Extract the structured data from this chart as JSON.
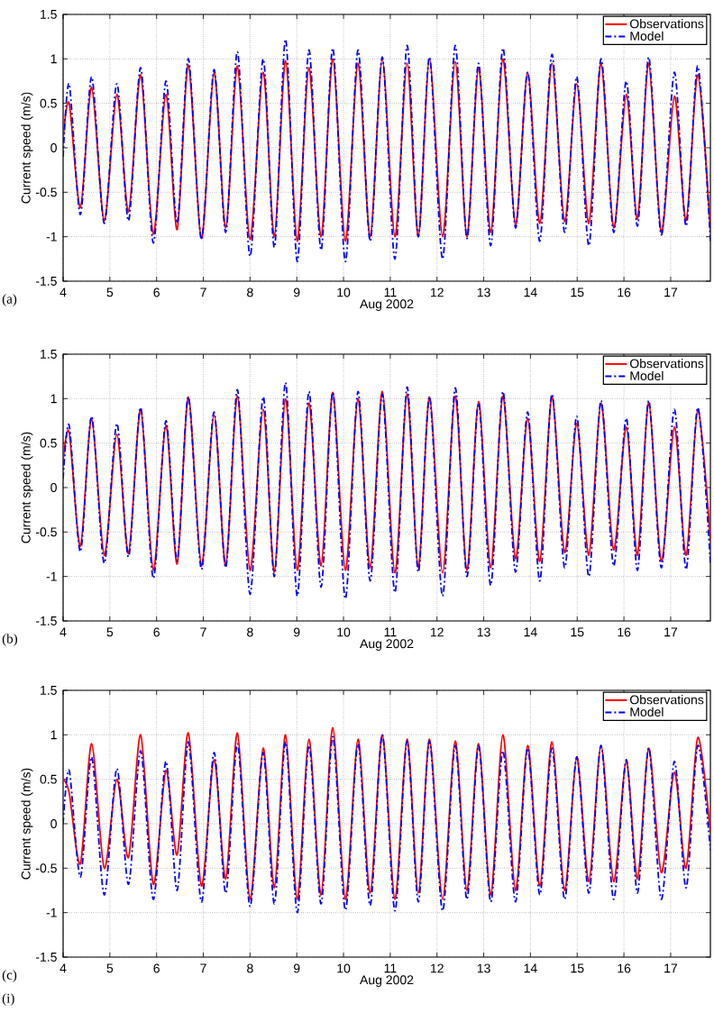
{
  "chart_data": [
    {
      "type": "line",
      "xlabel": "Aug 2002",
      "ylabel": "Current speed (m/s)",
      "annotations": [
        "(a)"
      ],
      "x": [
        4,
        4.13,
        4.37,
        4.61,
        4.88,
        5.15,
        5.4,
        5.66,
        5.93,
        6.2,
        6.44,
        6.68,
        6.96,
        7.23,
        7.48,
        7.73,
        8.0,
        8.28,
        8.52,
        8.76,
        9.01,
        9.26,
        9.52,
        9.77,
        10.04,
        10.31,
        10.57,
        10.83,
        11.1,
        11.36,
        11.6,
        11.84,
        12.12,
        12.39,
        12.64,
        12.89,
        13.15,
        13.41,
        13.68,
        13.94,
        14.2,
        14.46,
        14.73,
        14.99,
        15.25,
        15.51,
        15.78,
        16.05,
        16.29,
        16.53,
        16.8,
        17.08,
        17.33,
        17.58,
        17.85
      ],
      "series": [
        {
          "name": "Observations",
          "color": "#ff0000",
          "line_style": "solid",
          "values": [
            0.1,
            0.5,
            -0.67,
            0.68,
            -0.82,
            0.6,
            -0.72,
            0.82,
            -0.97,
            0.6,
            -0.92,
            0.93,
            -1.02,
            0.85,
            -0.9,
            0.92,
            -1.03,
            0.85,
            -1.0,
            0.98,
            -1.05,
            0.9,
            -1.0,
            1.0,
            -1.05,
            0.95,
            -1.0,
            1.0,
            -1.0,
            0.95,
            -1.0,
            1.0,
            -1.0,
            0.97,
            -1.0,
            0.9,
            -0.95,
            1.0,
            -0.87,
            0.85,
            -0.85,
            0.95,
            -0.83,
            0.72,
            -0.85,
            0.95,
            -0.9,
            0.6,
            -0.8,
            0.95,
            -0.95,
            0.58,
            -0.82,
            0.82,
            -0.95
          ]
        },
        {
          "name": "Model",
          "color": "#0000ff",
          "line_style": "dashdot",
          "values": [
            -0.1,
            0.72,
            -0.75,
            0.8,
            -0.85,
            0.72,
            -0.82,
            0.9,
            -1.07,
            0.75,
            -0.85,
            1.0,
            -1.03,
            0.88,
            -0.95,
            1.08,
            -1.22,
            1.0,
            -1.12,
            1.22,
            -1.28,
            1.1,
            -1.15,
            1.12,
            -1.28,
            1.1,
            -1.05,
            1.02,
            -1.25,
            1.15,
            -1.0,
            1.02,
            -1.25,
            1.15,
            -1.02,
            0.95,
            -1.1,
            1.12,
            -0.9,
            0.85,
            -1.05,
            1.05,
            -0.95,
            0.8,
            -1.1,
            1.0,
            -0.95,
            0.75,
            -0.88,
            1.02,
            -0.98,
            0.85,
            -0.88,
            0.92,
            -1.05
          ]
        }
      ],
      "xlim": [
        4,
        17.85
      ],
      "ylim": [
        -1.5,
        1.5
      ],
      "xticks": [
        4,
        5,
        6,
        7,
        8,
        9,
        10,
        11,
        12,
        13,
        14,
        15,
        16,
        17
      ],
      "yticks": [
        -1.5,
        -1,
        -0.5,
        0,
        0.5,
        1,
        1.5
      ],
      "grid": true,
      "legend": "top right"
    },
    {
      "type": "line",
      "xlabel": "Aug 2002",
      "ylabel": "Current speed (m/s)",
      "annotations": [
        "(b)"
      ],
      "x": [
        4,
        4.13,
        4.37,
        4.61,
        4.88,
        5.15,
        5.4,
        5.66,
        5.93,
        6.2,
        6.44,
        6.68,
        6.96,
        7.23,
        7.48,
        7.73,
        8.0,
        8.28,
        8.52,
        8.76,
        9.01,
        9.26,
        9.52,
        9.77,
        10.04,
        10.31,
        10.57,
        10.83,
        11.1,
        11.36,
        11.6,
        11.84,
        12.12,
        12.39,
        12.64,
        12.89,
        13.15,
        13.41,
        13.68,
        13.94,
        14.2,
        14.46,
        14.73,
        14.99,
        15.25,
        15.51,
        15.78,
        16.05,
        16.29,
        16.53,
        16.8,
        17.08,
        17.33,
        17.58,
        17.85
      ],
      "series": [
        {
          "name": "Observations",
          "color": "#ff0000",
          "line_style": "solid",
          "values": [
            0.3,
            0.62,
            -0.66,
            0.78,
            -0.76,
            0.6,
            -0.74,
            0.88,
            -0.93,
            0.7,
            -0.86,
            1.02,
            -0.88,
            0.82,
            -0.88,
            1.03,
            -0.93,
            0.88,
            -0.95,
            1.0,
            -0.93,
            0.95,
            -0.88,
            1.07,
            -0.93,
            1.0,
            -0.9,
            1.08,
            -0.96,
            1.05,
            -0.9,
            1.02,
            -0.96,
            1.03,
            -0.93,
            0.97,
            -0.9,
            1.03,
            -0.8,
            0.78,
            -0.83,
            1.02,
            -0.73,
            0.72,
            -0.76,
            0.95,
            -0.7,
            0.68,
            -0.76,
            0.95,
            -0.83,
            0.68,
            -0.76,
            0.88,
            -0.6
          ]
        },
        {
          "name": "Model",
          "color": "#0000ff",
          "line_style": "dashdot",
          "values": [
            0.1,
            0.7,
            -0.72,
            0.8,
            -0.85,
            0.72,
            -0.78,
            0.9,
            -1.02,
            0.75,
            -0.82,
            1.02,
            -0.92,
            0.85,
            -0.9,
            1.1,
            -1.2,
            1.02,
            -1.0,
            1.18,
            -1.22,
            1.08,
            -1.12,
            1.07,
            -1.25,
            1.08,
            -1.05,
            1.05,
            -1.18,
            1.13,
            -0.95,
            1.02,
            -1.22,
            1.12,
            -1.0,
            0.95,
            -1.1,
            1.08,
            -0.95,
            0.85,
            -1.05,
            1.05,
            -0.9,
            0.8,
            -1.0,
            0.98,
            -0.88,
            0.78,
            -0.93,
            0.98,
            -0.9,
            0.88,
            -0.92,
            0.9,
            -0.85
          ]
        }
      ],
      "xlim": [
        4,
        17.85
      ],
      "ylim": [
        -1.5,
        1.5
      ],
      "xticks": [
        4,
        5,
        6,
        7,
        8,
        9,
        10,
        11,
        12,
        13,
        14,
        15,
        16,
        17
      ],
      "yticks": [
        -1.5,
        -1,
        -0.5,
        0,
        0.5,
        1,
        1.5
      ],
      "grid": true,
      "legend": "top right"
    },
    {
      "type": "line",
      "xlabel": "Aug 2002",
      "ylabel": "Current speed (m/s)",
      "annotations": [
        "(c)",
        "(i)"
      ],
      "x": [
        4,
        4.13,
        4.37,
        4.61,
        4.88,
        5.15,
        5.4,
        5.66,
        5.93,
        6.2,
        6.44,
        6.68,
        6.96,
        7.23,
        7.48,
        7.73,
        8.0,
        8.28,
        8.52,
        8.76,
        9.01,
        9.26,
        9.52,
        9.77,
        10.04,
        10.31,
        10.57,
        10.83,
        11.1,
        11.36,
        11.6,
        11.84,
        12.12,
        12.39,
        12.64,
        12.89,
        13.15,
        13.41,
        13.68,
        13.94,
        14.2,
        14.46,
        14.73,
        14.99,
        15.25,
        15.51,
        15.78,
        16.05,
        16.29,
        16.53,
        16.8,
        17.08,
        17.33,
        17.58,
        17.85
      ],
      "series": [
        {
          "name": "Observations",
          "color": "#ff0000",
          "line_style": "solid",
          "values": [
            0.5,
            0.35,
            -0.45,
            0.9,
            -0.5,
            0.5,
            -0.38,
            1.0,
            -0.68,
            0.6,
            -0.35,
            1.02,
            -0.7,
            0.72,
            -0.62,
            1.02,
            -0.85,
            0.85,
            -0.72,
            1.0,
            -0.85,
            0.95,
            -0.8,
            1.08,
            -0.85,
            0.95,
            -0.78,
            1.0,
            -0.85,
            0.95,
            -0.78,
            0.95,
            -0.85,
            0.93,
            -0.75,
            0.9,
            -0.8,
            1.0,
            -0.75,
            0.88,
            -0.7,
            0.92,
            -0.75,
            0.75,
            -0.65,
            0.88,
            -0.65,
            0.7,
            -0.62,
            0.85,
            -0.55,
            0.58,
            -0.5,
            0.97,
            -0.1
          ]
        },
        {
          "name": "Model",
          "color": "#0000ff",
          "line_style": "dashdot",
          "values": [
            0.0,
            0.6,
            -0.6,
            0.75,
            -0.8,
            0.62,
            -0.68,
            0.82,
            -0.85,
            0.7,
            -0.75,
            0.92,
            -0.88,
            0.8,
            -0.78,
            0.9,
            -0.93,
            0.8,
            -0.9,
            0.92,
            -1.0,
            0.88,
            -0.9,
            0.98,
            -0.97,
            0.9,
            -0.92,
            1.0,
            -0.98,
            0.93,
            -0.88,
            0.93,
            -0.98,
            0.88,
            -0.85,
            0.88,
            -0.88,
            0.82,
            -0.88,
            0.85,
            -0.8,
            0.85,
            -0.85,
            0.75,
            -0.78,
            0.88,
            -0.85,
            0.72,
            -0.78,
            0.85,
            -0.85,
            0.7,
            -0.72,
            0.88,
            -0.3
          ]
        }
      ],
      "xlim": [
        4,
        17.85
      ],
      "ylim": [
        -1.5,
        1.5
      ],
      "xticks": [
        4,
        5,
        6,
        7,
        8,
        9,
        10,
        11,
        12,
        13,
        14,
        15,
        16,
        17
      ],
      "yticks": [
        -1.5,
        -1,
        -0.5,
        0,
        0.5,
        1,
        1.5
      ],
      "grid": true,
      "legend": "top right"
    }
  ]
}
